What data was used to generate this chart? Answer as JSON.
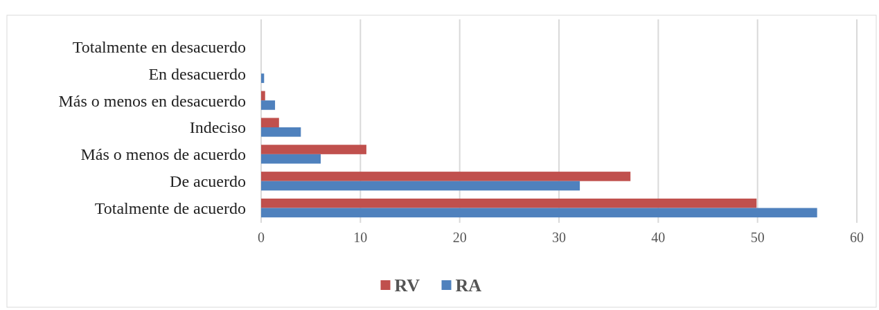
{
  "chart_data": {
    "type": "bar",
    "orientation": "horizontal",
    "categories": [
      "Totalmente en desacuerdo",
      "En desacuerdo",
      "Más o menos en desacuerdo",
      "Indeciso",
      "Más o menos de acuerdo",
      "De acuerdo",
      "Totalmente de acuerdo"
    ],
    "series": [
      {
        "name": "RV",
        "color": "#c0504d",
        "values": [
          0,
          0,
          0.4,
          1.8,
          10.6,
          37.2,
          49.9
        ]
      },
      {
        "name": "RA",
        "color": "#4f81bd",
        "values": [
          0,
          0.3,
          1.4,
          4.0,
          6.0,
          32.1,
          56.0
        ]
      }
    ],
    "xlim": [
      0,
      60
    ],
    "xticks": [
      0,
      10,
      20,
      30,
      40,
      50,
      60
    ],
    "grid": "x",
    "legend": "bottom"
  }
}
